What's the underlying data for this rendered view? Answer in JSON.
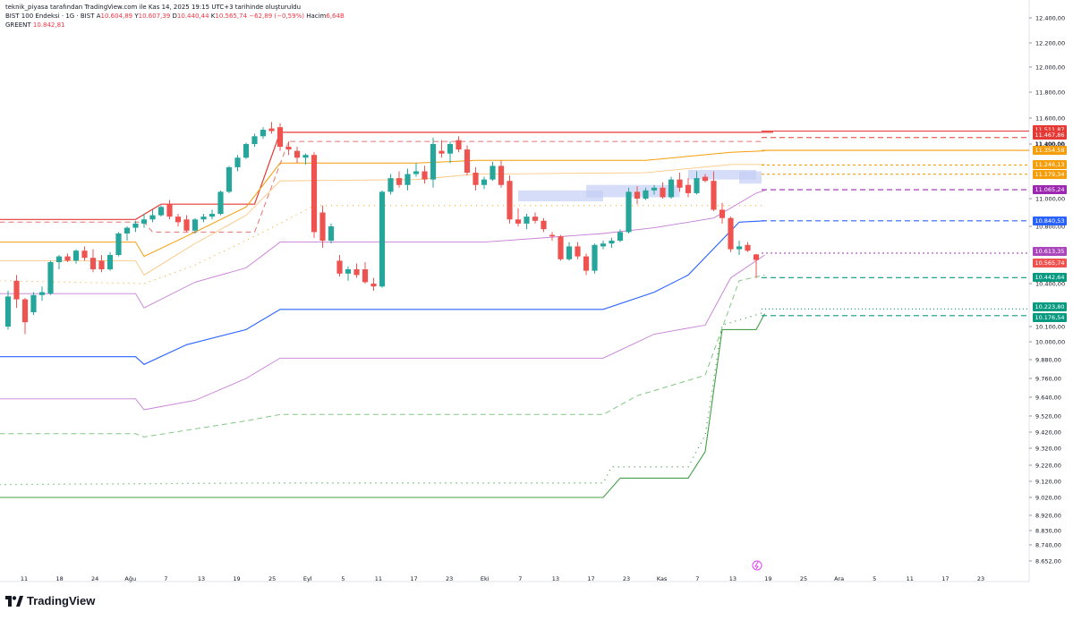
{
  "header": {
    "attribution": "teknik_piyasa tarafından TradingView.com ile Kas 14, 2025 19:15 UTC+3 tarihinde oluşturuldu",
    "symbol": "BIST 100 Endeksi · 1G · BIST",
    "o_label": "A",
    "o_value": "10.604,89",
    "h_label": "Y",
    "h_value": "10.607,39",
    "l_label": "D",
    "l_value": "10.440,44",
    "c_label": "K",
    "c_value": "10.565,74",
    "change": "−62,89 (−0,59%)",
    "vol_label": "Hacim",
    "vol_value": "6,64B",
    "indicator_name": "GREENT",
    "indicator_value": "10.842,81"
  },
  "brand": {
    "name": "TradingView"
  },
  "colors": {
    "up": "#26a69a",
    "down": "#ef5350",
    "red_band": "#e53935",
    "orange_band": "#f59e0b",
    "light_orange": "#fbbf72",
    "violet": "#c77dd6",
    "blue": "#2962ff",
    "green": "#43a047",
    "light_green": "#81c784",
    "zone": "#c5cff5"
  },
  "chart_data": {
    "type": "candlestick",
    "title": "",
    "yaxis_ticks": [
      "12.400,00",
      "12.200,00",
      "12.000,00",
      "11.800,00",
      "11.600,00",
      "11.400,00",
      "11.000,00",
      "10.800,00",
      "10.400,00",
      "10.100,00",
      "10.000,00",
      "9.880,00",
      "9.760,00",
      "9.640,00",
      "9.520,00",
      "9.420,00",
      "9.320,00",
      "9.220,00",
      "9.120,00",
      "9.020,00",
      "8.920,00",
      "8.830,00",
      "8.740,00",
      "8.652,00"
    ],
    "xaxis_ticks": [
      "11",
      "18",
      "24",
      "Ağu",
      "7",
      "13",
      "19",
      "25",
      "Eyl",
      "5",
      "11",
      "17",
      "23",
      "Eki",
      "7",
      "13",
      "17",
      "23",
      "Kas",
      "7",
      "13",
      "19",
      "25",
      "Ara",
      "5",
      "11",
      "17",
      "23"
    ],
    "price_labels": [
      {
        "text": "11.511,87",
        "color": "#e53935"
      },
      {
        "text": "11.467,86",
        "color": "#e53935"
      },
      {
        "text": "11.400,00",
        "color": "none"
      },
      {
        "text": "11.354,58",
        "color": "#f59e0b"
      },
      {
        "text": "11.246,13",
        "color": "#f59e0b"
      },
      {
        "text": "11.179,34",
        "color": "#f59e0b"
      },
      {
        "text": "11.065,24",
        "color": "#9c27b0"
      },
      {
        "text": "10.840,53",
        "color": "#2962ff"
      },
      {
        "text": "10.613,35",
        "color": "#ab47bc"
      },
      {
        "text": "10.565,74",
        "color": "#ef5350"
      },
      {
        "text": "10.442,64",
        "color": "#089981"
      },
      {
        "text": "10.223,80",
        "color": "#089981"
      },
      {
        "text": "10.176,54",
        "color": "#089981"
      }
    ],
    "candles": [
      {
        "o": 10100,
        "h": 10350,
        "l": 10080,
        "c": 10310
      },
      {
        "o": 10420,
        "h": 10460,
        "l": 10230,
        "c": 10290
      },
      {
        "o": 10290,
        "h": 10300,
        "l": 10050,
        "c": 10130
      },
      {
        "o": 10200,
        "h": 10340,
        "l": 10180,
        "c": 10320
      },
      {
        "o": 10320,
        "h": 10380,
        "l": 10280,
        "c": 10340
      },
      {
        "o": 10330,
        "h": 10560,
        "l": 10320,
        "c": 10550
      },
      {
        "o": 10550,
        "h": 10600,
        "l": 10500,
        "c": 10590
      },
      {
        "o": 10590,
        "h": 10610,
        "l": 10550,
        "c": 10560
      },
      {
        "o": 10560,
        "h": 10640,
        "l": 10540,
        "c": 10630
      },
      {
        "o": 10630,
        "h": 10660,
        "l": 10560,
        "c": 10580
      },
      {
        "o": 10580,
        "h": 10640,
        "l": 10480,
        "c": 10500
      },
      {
        "o": 10560,
        "h": 10600,
        "l": 10480,
        "c": 10500
      },
      {
        "o": 10500,
        "h": 10620,
        "l": 10490,
        "c": 10600
      },
      {
        "o": 10600,
        "h": 10760,
        "l": 10590,
        "c": 10750
      },
      {
        "o": 10750,
        "h": 10800,
        "l": 10700,
        "c": 10790
      },
      {
        "o": 10790,
        "h": 10840,
        "l": 10760,
        "c": 10820
      },
      {
        "o": 10820,
        "h": 10890,
        "l": 10790,
        "c": 10850
      },
      {
        "o": 10850,
        "h": 10920,
        "l": 10830,
        "c": 10880
      },
      {
        "o": 10880,
        "h": 10950,
        "l": 10870,
        "c": 10940
      },
      {
        "o": 10960,
        "h": 10990,
        "l": 10850,
        "c": 10870
      },
      {
        "o": 10870,
        "h": 10890,
        "l": 10800,
        "c": 10830
      },
      {
        "o": 10850,
        "h": 10880,
        "l": 10760,
        "c": 10770
      },
      {
        "o": 10770,
        "h": 10860,
        "l": 10750,
        "c": 10850
      },
      {
        "o": 10850,
        "h": 10890,
        "l": 10830,
        "c": 10870
      },
      {
        "o": 10870,
        "h": 10920,
        "l": 10850,
        "c": 10890
      },
      {
        "o": 10890,
        "h": 11060,
        "l": 10880,
        "c": 11050
      },
      {
        "o": 11050,
        "h": 11240,
        "l": 11040,
        "c": 11230
      },
      {
        "o": 11230,
        "h": 11320,
        "l": 11200,
        "c": 11300
      },
      {
        "o": 11300,
        "h": 11410,
        "l": 11290,
        "c": 11400
      },
      {
        "o": 11400,
        "h": 11480,
        "l": 11380,
        "c": 11460
      },
      {
        "o": 11460,
        "h": 11530,
        "l": 11440,
        "c": 11510
      },
      {
        "o": 11520,
        "h": 11570,
        "l": 11480,
        "c": 11500
      },
      {
        "o": 11530,
        "h": 11560,
        "l": 11350,
        "c": 11380
      },
      {
        "o": 11380,
        "h": 11420,
        "l": 11320,
        "c": 11360
      },
      {
        "o": 11350,
        "h": 11380,
        "l": 11260,
        "c": 11300
      },
      {
        "o": 11300,
        "h": 11330,
        "l": 11250,
        "c": 11320
      },
      {
        "o": 11320,
        "h": 11340,
        "l": 10720,
        "c": 10760
      },
      {
        "o": 10900,
        "h": 10950,
        "l": 10650,
        "c": 10700
      },
      {
        "o": 10700,
        "h": 10820,
        "l": 10680,
        "c": 10800
      },
      {
        "o": 10560,
        "h": 10600,
        "l": 10450,
        "c": 10470
      },
      {
        "o": 10470,
        "h": 10520,
        "l": 10420,
        "c": 10500
      },
      {
        "o": 10500,
        "h": 10540,
        "l": 10440,
        "c": 10460
      },
      {
        "o": 10500,
        "h": 10550,
        "l": 10400,
        "c": 10410
      },
      {
        "o": 10400,
        "h": 10440,
        "l": 10350,
        "c": 10380
      },
      {
        "o": 10380,
        "h": 11060,
        "l": 10370,
        "c": 11050
      },
      {
        "o": 11050,
        "h": 11180,
        "l": 11030,
        "c": 11150
      },
      {
        "o": 11150,
        "h": 11200,
        "l": 11080,
        "c": 11100
      },
      {
        "o": 11100,
        "h": 11220,
        "l": 11060,
        "c": 11180
      },
      {
        "o": 11180,
        "h": 11260,
        "l": 11160,
        "c": 11200
      },
      {
        "o": 11200,
        "h": 11240,
        "l": 11110,
        "c": 11140
      },
      {
        "o": 11140,
        "h": 11450,
        "l": 11080,
        "c": 11400
      },
      {
        "o": 11350,
        "h": 11430,
        "l": 11300,
        "c": 11330
      },
      {
        "o": 11330,
        "h": 11420,
        "l": 11260,
        "c": 11400
      },
      {
        "o": 11430,
        "h": 11460,
        "l": 11340,
        "c": 11360
      },
      {
        "o": 11360,
        "h": 11390,
        "l": 11170,
        "c": 11190
      },
      {
        "o": 11190,
        "h": 11230,
        "l": 11060,
        "c": 11100
      },
      {
        "o": 11100,
        "h": 11160,
        "l": 11070,
        "c": 11140
      },
      {
        "o": 11140,
        "h": 11270,
        "l": 11130,
        "c": 11240
      },
      {
        "o": 11240,
        "h": 11280,
        "l": 11080,
        "c": 11100
      },
      {
        "o": 11130,
        "h": 11170,
        "l": 10820,
        "c": 10850
      },
      {
        "o": 10850,
        "h": 10930,
        "l": 10800,
        "c": 10820
      },
      {
        "o": 10820,
        "h": 10890,
        "l": 10780,
        "c": 10870
      },
      {
        "o": 10870,
        "h": 10900,
        "l": 10820,
        "c": 10840
      },
      {
        "o": 10840,
        "h": 10860,
        "l": 10760,
        "c": 10780
      },
      {
        "o": 10740,
        "h": 10760,
        "l": 10700,
        "c": 10730
      },
      {
        "o": 10730,
        "h": 10740,
        "l": 10560,
        "c": 10570
      },
      {
        "o": 10570,
        "h": 10690,
        "l": 10560,
        "c": 10660
      },
      {
        "o": 10660,
        "h": 10690,
        "l": 10570,
        "c": 10590
      },
      {
        "o": 10590,
        "h": 10610,
        "l": 10460,
        "c": 10490
      },
      {
        "o": 10490,
        "h": 10680,
        "l": 10470,
        "c": 10670
      },
      {
        "o": 10660,
        "h": 10700,
        "l": 10640,
        "c": 10680
      },
      {
        "o": 10680,
        "h": 10720,
        "l": 10650,
        "c": 10700
      },
      {
        "o": 10700,
        "h": 10780,
        "l": 10690,
        "c": 10760
      },
      {
        "o": 10760,
        "h": 11080,
        "l": 10750,
        "c": 11050
      },
      {
        "o": 11050,
        "h": 11090,
        "l": 10960,
        "c": 11000
      },
      {
        "o": 11000,
        "h": 11080,
        "l": 10990,
        "c": 11060
      },
      {
        "o": 11060,
        "h": 11100,
        "l": 11030,
        "c": 11080
      },
      {
        "o": 11080,
        "h": 11120,
        "l": 11000,
        "c": 11010
      },
      {
        "o": 11010,
        "h": 11160,
        "l": 11000,
        "c": 11140
      },
      {
        "o": 11140,
        "h": 11190,
        "l": 11050,
        "c": 11080
      },
      {
        "o": 11100,
        "h": 11150,
        "l": 11010,
        "c": 11040
      },
      {
        "o": 11040,
        "h": 11200,
        "l": 11030,
        "c": 11150
      },
      {
        "o": 11160,
        "h": 11180,
        "l": 11120,
        "c": 11130
      },
      {
        "o": 11130,
        "h": 11200,
        "l": 10910,
        "c": 10920
      },
      {
        "o": 10920,
        "h": 10970,
        "l": 10820,
        "c": 10860
      },
      {
        "o": 10860,
        "h": 10870,
        "l": 10620,
        "c": 10640
      },
      {
        "o": 10640,
        "h": 10700,
        "l": 10600,
        "c": 10660
      },
      {
        "o": 10670,
        "h": 10690,
        "l": 10620,
        "c": 10630
      },
      {
        "o": 10604,
        "h": 10607,
        "l": 10440,
        "c": 10565
      }
    ]
  }
}
